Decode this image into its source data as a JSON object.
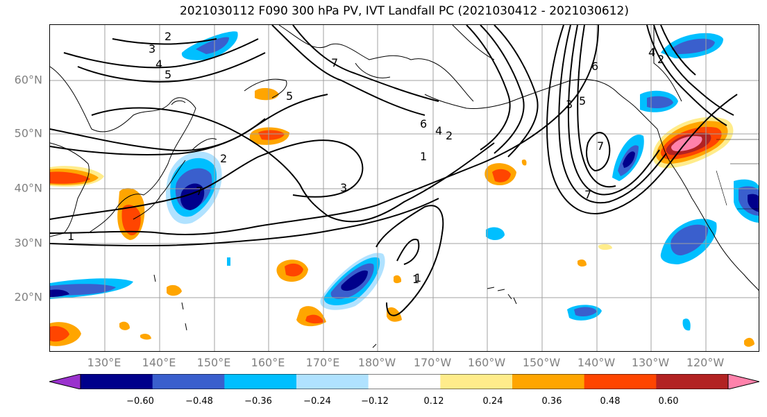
{
  "title": "2021030112 F090 300 hPa PV, IVT Landfall PC (2021030412 - 2021030612)",
  "map": {
    "lat_labels": [
      "60°N",
      "50°N",
      "40°N",
      "30°N",
      "20°N"
    ],
    "lon_labels": [
      "130°E",
      "140°E",
      "150°E",
      "160°E",
      "170°E",
      "180°W",
      "170°W",
      "160°W",
      "150°W",
      "140°W",
      "130°W",
      "120°W"
    ],
    "contour_labels": [
      "2",
      "3",
      "4",
      "5",
      "5",
      "7",
      "6",
      "4",
      "2",
      "1",
      "3",
      "2",
      "1",
      "1",
      "7",
      "1",
      "3",
      "5",
      "6",
      "7",
      "7",
      "4",
      "2"
    ],
    "colors": {
      "grid": "#a0a0a0",
      "coast": "#000000",
      "contour": "#000000"
    }
  },
  "colorbar": {
    "ticks": [
      "−0.60",
      "−0.48",
      "−0.36",
      "−0.24",
      "−0.12",
      "0.12",
      "0.24",
      "0.36",
      "0.48",
      "0.60"
    ],
    "colors": [
      "#9a32cd",
      "#00008b",
      "#3a5fcd",
      "#00bfff",
      "#b0e2ff",
      "#ffffff",
      "#ffec8b",
      "#ffa500",
      "#ff4500",
      "#b22222",
      "#ff82ab"
    ]
  }
}
